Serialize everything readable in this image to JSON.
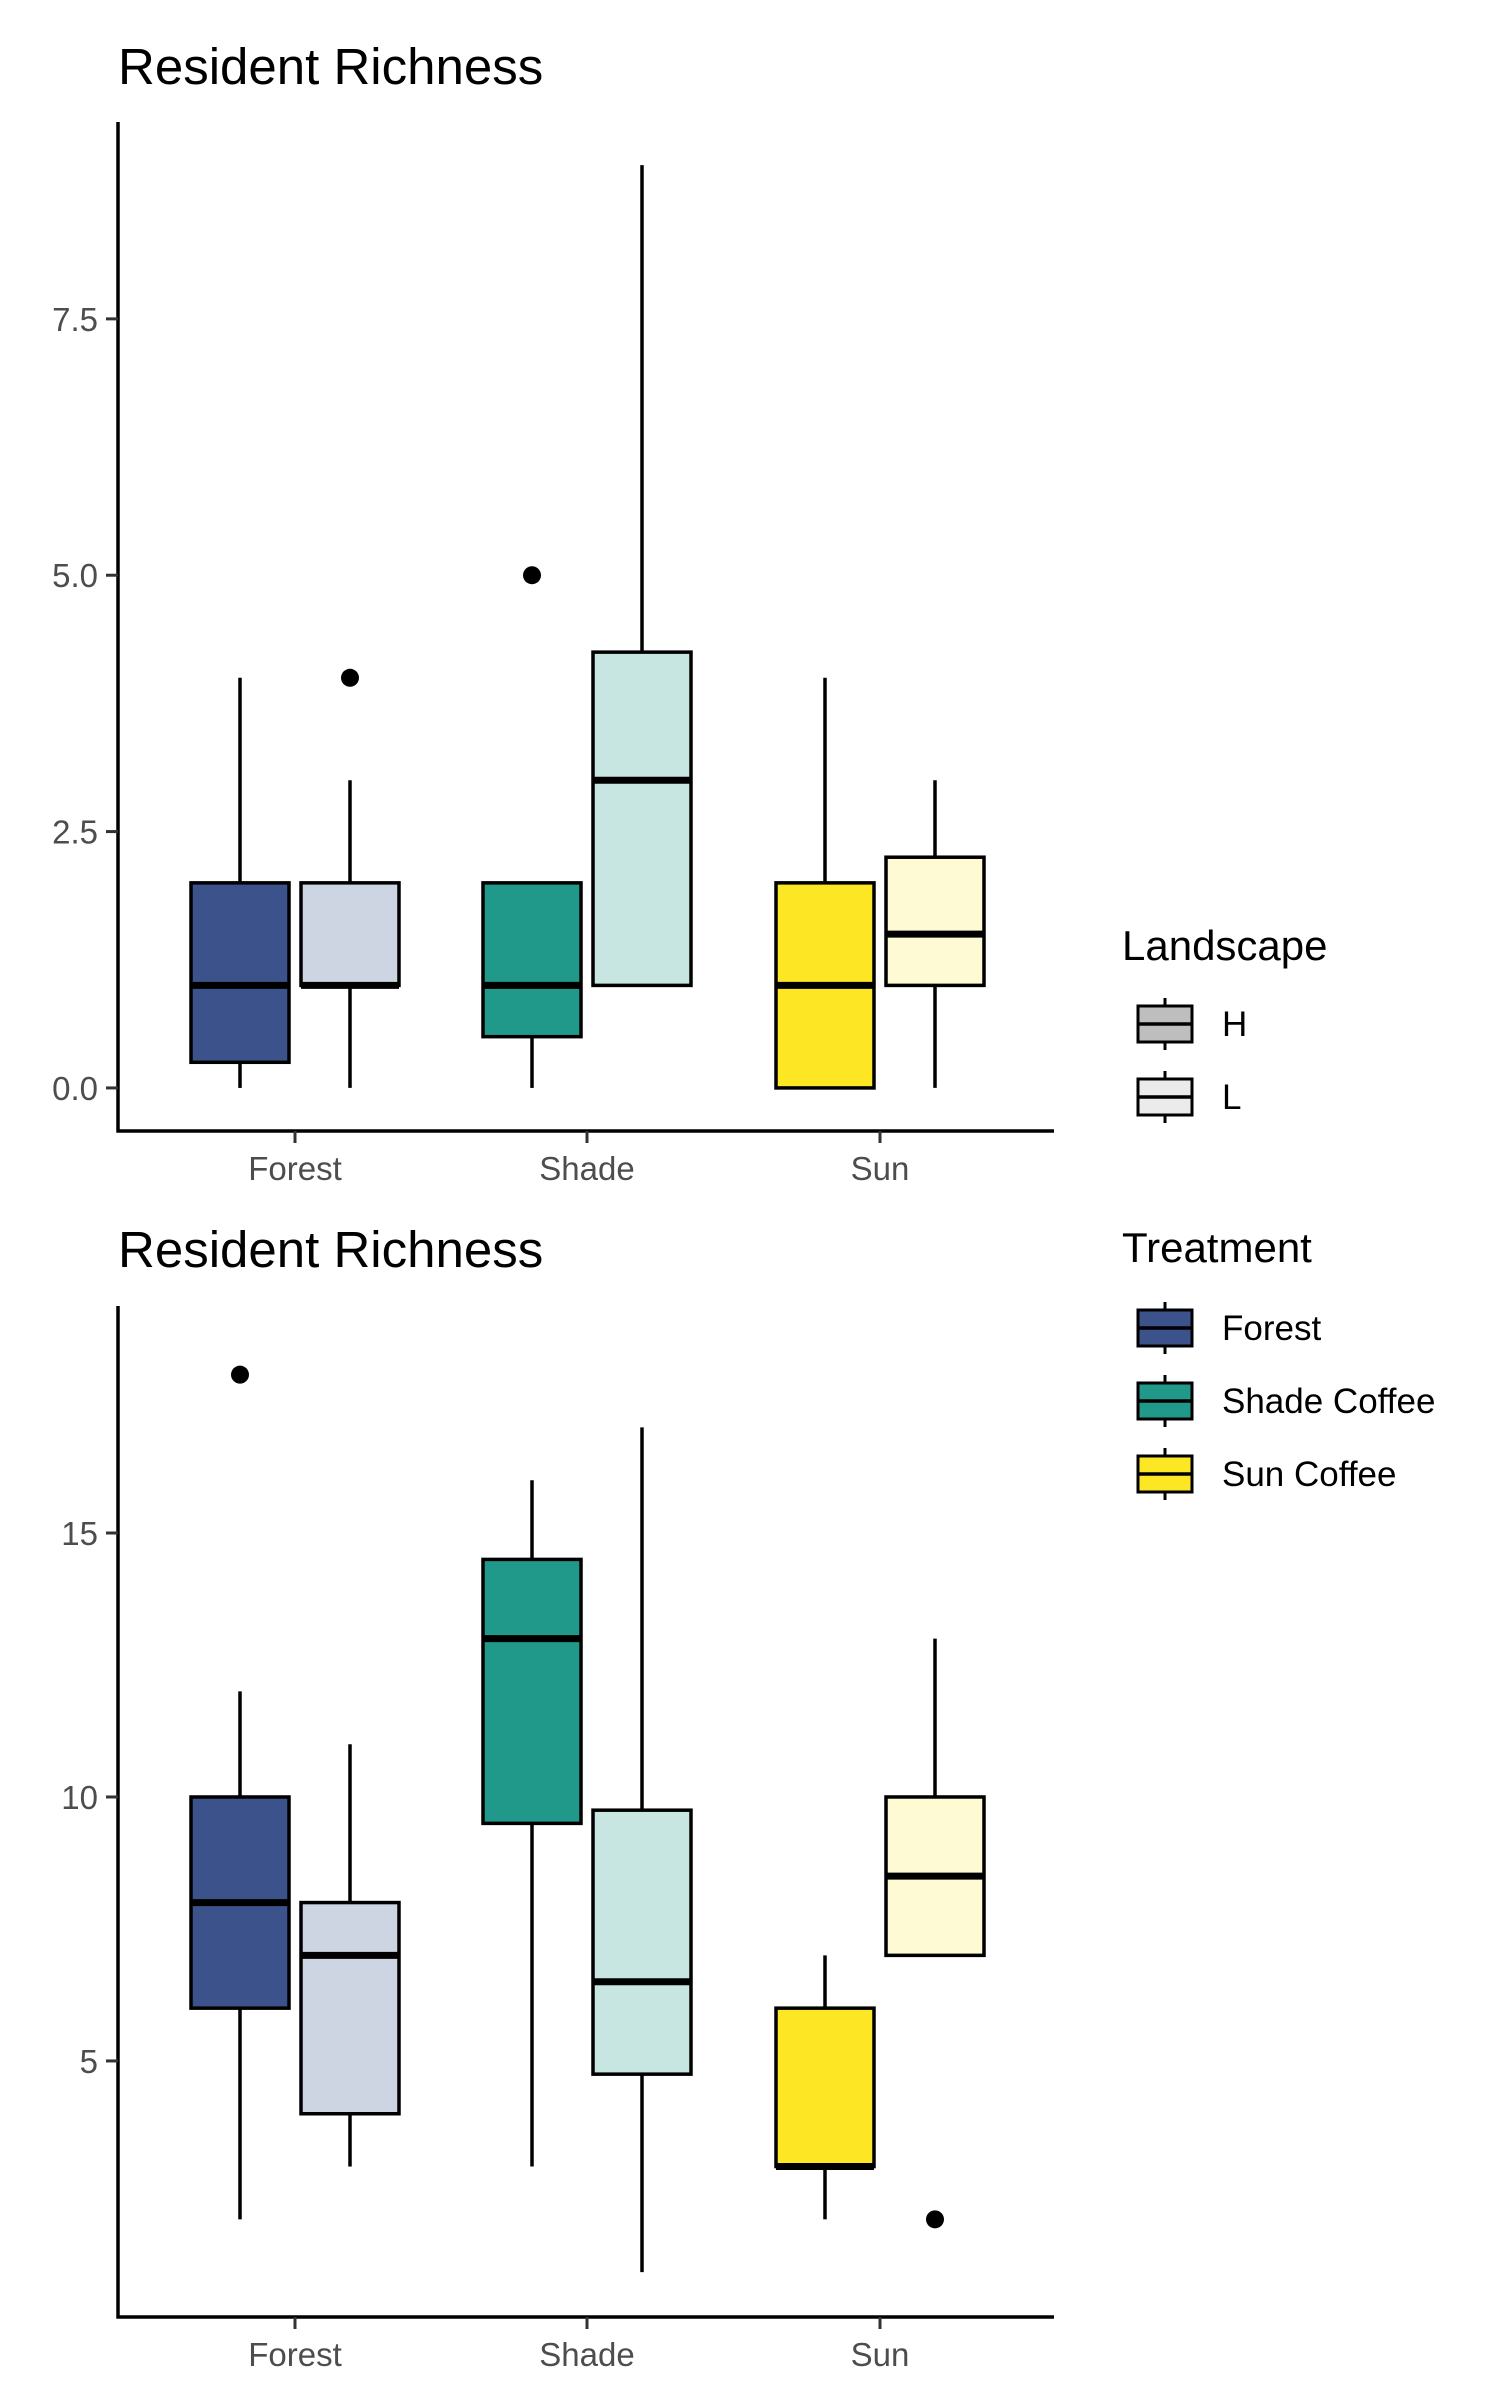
{
  "chart_data": [
    {
      "type": "box",
      "title": "Resident Richness",
      "xlabel": "",
      "ylabel": "",
      "categories": [
        "Forest",
        "Shade",
        "Sun"
      ],
      "yticks": [
        0.0,
        2.5,
        5.0,
        7.5
      ],
      "ytick_labels": [
        "0.0",
        "2.5",
        "5.0",
        "7.5"
      ],
      "ylim": [
        -0.42,
        9.42
      ],
      "grid": false,
      "boxes": [
        {
          "category": "Forest",
          "landscape": "H",
          "treatment": "Forest",
          "min": 0,
          "q1": 0.25,
          "median": 1,
          "q3": 2,
          "max": 4,
          "outliers": []
        },
        {
          "category": "Forest",
          "landscape": "L",
          "treatment": "Forest",
          "min": 0,
          "q1": 1,
          "median": 1,
          "q3": 2,
          "max": 3,
          "outliers": [
            4
          ]
        },
        {
          "category": "Shade",
          "landscape": "H",
          "treatment": "Shade Coffee",
          "min": 0,
          "q1": 0.5,
          "median": 1,
          "q3": 2,
          "max": 2,
          "outliers": [
            5
          ]
        },
        {
          "category": "Shade",
          "landscape": "L",
          "treatment": "Shade Coffee",
          "min": 1,
          "q1": 1,
          "median": 3,
          "q3": 4.25,
          "max": 9,
          "outliers": []
        },
        {
          "category": "Sun",
          "landscape": "H",
          "treatment": "Sun Coffee",
          "min": 0,
          "q1": 0,
          "median": 1,
          "q3": 2,
          "max": 4,
          "outliers": []
        },
        {
          "category": "Sun",
          "landscape": "L",
          "treatment": "Sun Coffee",
          "min": 0,
          "q1": 1,
          "median": 1.5,
          "q3": 2.25,
          "max": 3,
          "outliers": []
        }
      ]
    },
    {
      "type": "box",
      "title": "Resident Richness",
      "xlabel": "",
      "ylabel": "",
      "categories": [
        "Forest",
        "Shade",
        "Sun"
      ],
      "yticks": [
        5,
        10,
        15
      ],
      "ytick_labels": [
        "5",
        "10",
        "15"
      ],
      "ylim": [
        0.15,
        19.3
      ],
      "grid": false,
      "boxes": [
        {
          "category": "Forest",
          "landscape": "H",
          "treatment": "Forest",
          "min": 2,
          "q1": 6,
          "median": 8,
          "q3": 10,
          "max": 12,
          "outliers": [
            18
          ]
        },
        {
          "category": "Forest",
          "landscape": "L",
          "treatment": "Forest",
          "min": 3,
          "q1": 4,
          "median": 7,
          "q3": 8,
          "max": 11,
          "outliers": []
        },
        {
          "category": "Shade",
          "landscape": "H",
          "treatment": "Shade Coffee",
          "min": 3,
          "q1": 9.5,
          "median": 13,
          "q3": 14.5,
          "max": 16,
          "outliers": []
        },
        {
          "category": "Shade",
          "landscape": "L",
          "treatment": "Shade Coffee",
          "min": 1,
          "q1": 4.75,
          "median": 6.5,
          "q3": 9.75,
          "max": 17,
          "outliers": []
        },
        {
          "category": "Sun",
          "landscape": "H",
          "treatment": "Sun Coffee",
          "min": 2,
          "q1": 3,
          "median": 3,
          "q3": 6,
          "max": 7,
          "outliers": []
        },
        {
          "category": "Sun",
          "landscape": "L",
          "treatment": "Sun Coffee",
          "min": 7,
          "q1": 7,
          "median": 8.5,
          "q3": 10,
          "max": 13,
          "outliers": [
            2
          ]
        }
      ]
    }
  ],
  "colors": {
    "Forest": {
      "H": "#3b528b",
      "L": "#ced5e2"
    },
    "Shade Coffee": {
      "H": "#21998a",
      "L": "#c7e6e2"
    },
    "Sun Coffee": {
      "H": "#fde725",
      "L": "#fefad3"
    },
    "legend_landscape": {
      "H": "#bebebe",
      "L": "#ebebeb"
    },
    "outline": "#000000",
    "axis": "#000000",
    "tick_text": "#4d4d4d"
  },
  "legends": [
    {
      "title": "Landscape",
      "entries": [
        {
          "label": "H",
          "color": "#bebebe"
        },
        {
          "label": "L",
          "color": "#ebebeb"
        }
      ]
    },
    {
      "title": "Treatment",
      "entries": [
        {
          "label": "Forest",
          "color": "#3b528b"
        },
        {
          "label": "Shade Coffee",
          "color": "#21998a"
        },
        {
          "label": "Sun Coffee",
          "color": "#fde725"
        }
      ]
    }
  ]
}
